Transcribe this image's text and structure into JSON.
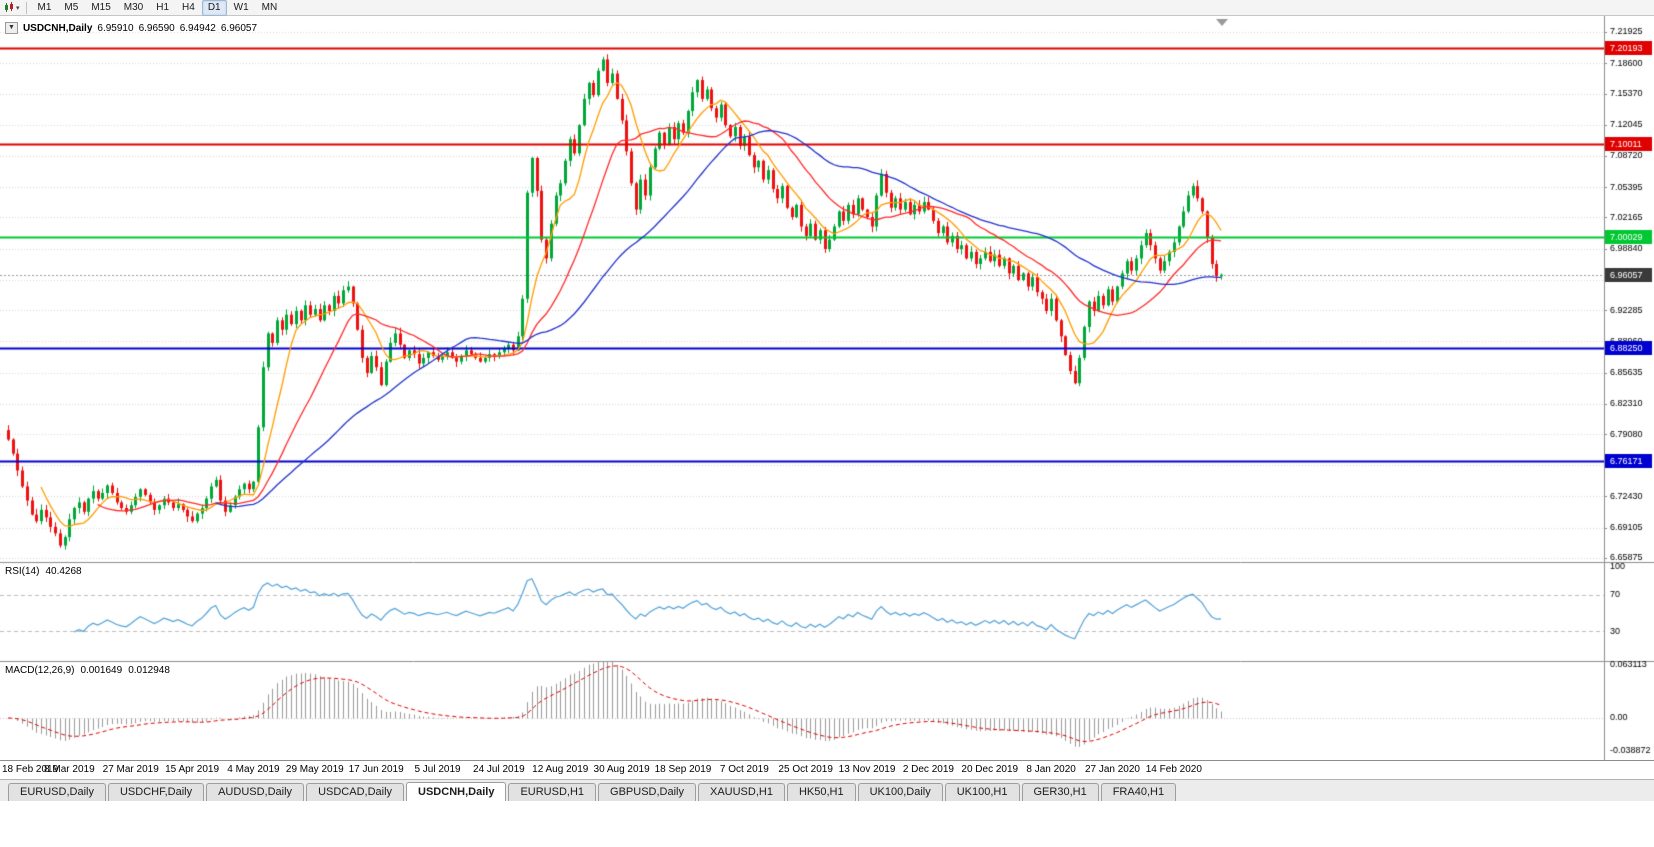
{
  "toolbar": {
    "timeframes": [
      "M1",
      "M5",
      "M15",
      "M30",
      "H1",
      "H4",
      "D1",
      "W1",
      "MN"
    ],
    "active_timeframe": "D1",
    "chart_type_icon": "candlestick-chart-icon",
    "dropdown_caret": "▾"
  },
  "chart_header": {
    "collapse_icon": "▼",
    "symbol": "USDCNH,Daily",
    "open": "6.95910",
    "high": "6.96590",
    "low": "6.94942",
    "close": "6.96057"
  },
  "indicators": {
    "rsi_label": "RSI(14)",
    "rsi_value": "40.4268",
    "macd_label": "MACD(12,26,9)",
    "macd_values": [
      "0.001649",
      "0.012948"
    ]
  },
  "tabs": {
    "items": [
      "EURUSD,Daily",
      "USDCHF,Daily",
      "AUDUSD,Daily",
      "USDCAD,Daily",
      "USDCNH,Daily",
      "EURUSD,H1",
      "GBPUSD,Daily",
      "XAUUSD,H1",
      "HK50,H1",
      "UK100,Daily",
      "UK100,H1",
      "GER30,H1",
      "FRA40,H1"
    ],
    "active_index": 4
  },
  "chart_data": {
    "type": "candlestick",
    "symbol": "USDCNH",
    "timeframe": "Daily",
    "dates": [
      "18 Feb 2019",
      "8 Mar 2019",
      "27 Mar 2019",
      "15 Apr 2019",
      "4 May 2019",
      "29 May 2019",
      "17 Jun 2019",
      "5 Jul 2019",
      "24 Jul 2019",
      "12 Aug 2019",
      "30 Aug 2019",
      "18 Sep 2019",
      "7 Oct 2019",
      "25 Oct 2019",
      "13 Nov 2019",
      "2 Dec 2019",
      "20 Dec 2019",
      "8 Jan 2020",
      "27 Jan 2020",
      "14 Feb 2020"
    ],
    "bars_per_label": 13,
    "first_open": 6.795,
    "closes": [
      6.785,
      6.77,
      6.752,
      6.735,
      6.72,
      6.705,
      6.698,
      6.71,
      6.702,
      6.692,
      6.685,
      6.672,
      6.681,
      6.7,
      6.712,
      6.718,
      6.708,
      6.722,
      6.73,
      6.722,
      6.728,
      6.736,
      6.728,
      6.718,
      6.712,
      6.708,
      6.715,
      6.724,
      6.732,
      6.726,
      6.718,
      6.71,
      6.715,
      6.722,
      6.718,
      6.712,
      6.716,
      6.71,
      6.703,
      6.698,
      6.706,
      6.712,
      6.722,
      6.735,
      6.742,
      6.72,
      6.708,
      6.715,
      6.724,
      6.732,
      6.738,
      6.732,
      6.74,
      6.798,
      6.862,
      6.898,
      6.888,
      6.912,
      6.902,
      6.918,
      6.908,
      6.922,
      6.912,
      6.928,
      6.918,
      6.924,
      6.912,
      6.928,
      6.922,
      6.938,
      6.93,
      6.944,
      6.948,
      6.93,
      6.902,
      6.872,
      6.856,
      6.874,
      6.862,
      6.843,
      6.868,
      6.888,
      6.898,
      6.886,
      6.872,
      6.88,
      6.876,
      6.866,
      6.872,
      6.878,
      6.874,
      6.87,
      6.874,
      6.878,
      6.872,
      6.868,
      6.874,
      6.88,
      6.876,
      6.872,
      6.868,
      6.872,
      6.876,
      6.874,
      6.878,
      6.882,
      6.886,
      6.88,
      6.895,
      6.935,
      7.048,
      7.085,
      7.05,
      6.998,
      6.978,
      7.015,
      7.045,
      7.058,
      7.082,
      7.105,
      7.09,
      7.12,
      7.148,
      7.165,
      7.152,
      7.178,
      7.19,
      7.165,
      7.175,
      7.148,
      7.125,
      7.092,
      7.058,
      7.03,
      7.062,
      7.045,
      7.075,
      7.095,
      7.112,
      7.1,
      7.118,
      7.105,
      7.122,
      7.112,
      7.135,
      7.155,
      7.168,
      7.148,
      7.158,
      7.138,
      7.128,
      7.142,
      7.12,
      7.108,
      7.118,
      7.098,
      7.108,
      7.088,
      7.075,
      7.082,
      7.062,
      7.072,
      7.052,
      7.042,
      7.055,
      7.032,
      7.022,
      7.035,
      7.012,
      7.002,
      7.015,
      6.998,
      7.008,
      6.988,
      6.998,
      7.012,
      7.028,
      7.018,
      7.035,
      7.025,
      7.042,
      7.03,
      7.022,
      7.012,
      7.045,
      7.068,
      7.048,
      7.032,
      7.042,
      7.03,
      7.038,
      7.025,
      7.035,
      7.028,
      7.038,
      7.03,
      7.018,
      7.005,
      7.012,
      6.995,
      7.002,
      6.988,
      6.992,
      6.978,
      6.985,
      6.972,
      6.978,
      6.985,
      6.975,
      6.982,
      6.97,
      6.978,
      6.962,
      6.97,
      6.955,
      6.962,
      6.948,
      6.958,
      6.942,
      6.935,
      6.922,
      6.935,
      6.912,
      6.895,
      6.875,
      6.858,
      6.845,
      6.872,
      6.905,
      6.932,
      6.922,
      6.938,
      6.928,
      6.945,
      6.932,
      6.948,
      6.962,
      6.975,
      6.965,
      6.978,
      6.992,
      7.005,
      6.992,
      6.978,
      6.965,
      6.975,
      6.985,
      6.995,
      7.012,
      7.028,
      7.045,
      7.055,
      7.042,
      7.028,
      7.0,
      6.972,
      6.959,
      6.9606
    ],
    "current_price": {
      "label": "6.96057",
      "value": 6.96057,
      "tag_color": "#3a3a3a",
      "line_color": "#9a9a9a"
    },
    "hlines": [
      {
        "label": "7.20193",
        "value": 7.20193,
        "color": "#e00000",
        "width": 2
      },
      {
        "label": "7.10011",
        "value": 7.10011,
        "color": "#e00000",
        "width": 2
      },
      {
        "label": "7.00029",
        "value": 7.00029,
        "color": "#00c832",
        "width": 2
      },
      {
        "label": "6.88250",
        "value": 6.8825,
        "color": "#0000d0",
        "width": 2
      },
      {
        "label": "6.76171",
        "value": 6.76171,
        "color": "#0000d0",
        "width": 2
      }
    ],
    "moving_averages": [
      {
        "period": 8,
        "color": "#ff9c00"
      },
      {
        "period": 20,
        "color": "#ff2a2a"
      },
      {
        "period": 45,
        "color": "#2233cc"
      }
    ],
    "rsi": {
      "period": 14,
      "color": "#53a2d8",
      "levels": [
        70,
        30
      ]
    },
    "macd": {
      "fast": 12,
      "slow": 26,
      "signal": 9,
      "hist_color": "#9a9a9a",
      "signal_color": "#e00000"
    },
    "candle_up_color": "#00a839",
    "candle_down_color": "#ee1111",
    "price_axis_ticks": [
      "7.21925",
      "7.18600",
      "7.15370",
      "7.12045",
      "7.08720",
      "7.05395",
      "7.02165",
      "6.98840",
      "6.95515",
      "6.92285",
      "6.88960",
      "6.85635",
      "6.82310",
      "6.79080",
      "6.75755",
      "6.72430",
      "6.69105",
      "6.65875"
    ],
    "rsi_axis_ticks": [
      "100",
      "70",
      "30"
    ],
    "macd_axis_ticks": [
      "0.063113",
      "0.00",
      "-0.038872"
    ]
  }
}
